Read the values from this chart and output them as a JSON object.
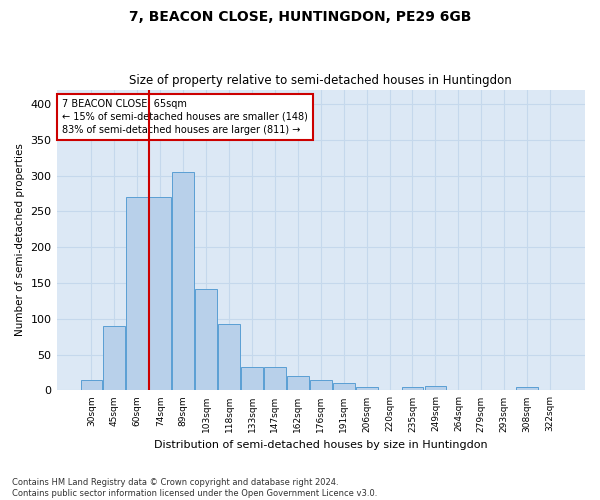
{
  "title": "7, BEACON CLOSE, HUNTINGDON, PE29 6GB",
  "subtitle": "Size of property relative to semi-detached houses in Huntingdon",
  "xlabel": "Distribution of semi-detached houses by size in Huntingdon",
  "ylabel": "Number of semi-detached properties",
  "footer_line1": "Contains HM Land Registry data © Crown copyright and database right 2024.",
  "footer_line2": "Contains public sector information licensed under the Open Government Licence v3.0.",
  "categories": [
    "30sqm",
    "45sqm",
    "60sqm",
    "74sqm",
    "89sqm",
    "103sqm",
    "118sqm",
    "133sqm",
    "147sqm",
    "162sqm",
    "176sqm",
    "191sqm",
    "206sqm",
    "220sqm",
    "235sqm",
    "249sqm",
    "264sqm",
    "279sqm",
    "293sqm",
    "308sqm",
    "322sqm"
  ],
  "values": [
    15,
    90,
    270,
    270,
    305,
    142,
    93,
    33,
    33,
    20,
    14,
    10,
    5,
    0,
    5,
    6,
    0,
    0,
    0,
    5,
    0
  ],
  "bar_color": "#b8d0ea",
  "bar_edge_color": "#5a9fd4",
  "grid_color": "#c5d8ec",
  "background_color": "#dce8f5",
  "vline_x": 2.5,
  "vline_color": "#cc0000",
  "annotation_text": "7 BEACON CLOSE: 65sqm\n← 15% of semi-detached houses are smaller (148)\n83% of semi-detached houses are larger (811) →",
  "annotation_box_edge_color": "#cc0000",
  "ylim": [
    0,
    420
  ],
  "yticks": [
    0,
    50,
    100,
    150,
    200,
    250,
    300,
    350,
    400
  ]
}
